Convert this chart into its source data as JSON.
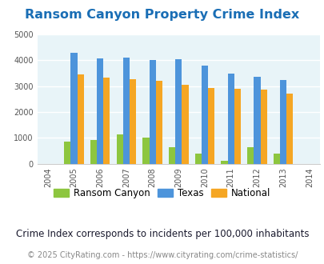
{
  "title": "Ransom Canyon Property Crime Index",
  "years": [
    2004,
    2005,
    2006,
    2007,
    2008,
    2009,
    2010,
    2011,
    2012,
    2013,
    2014
  ],
  "data_years": [
    2005,
    2006,
    2007,
    2008,
    2009,
    2010,
    2011,
    2012,
    2013
  ],
  "ransom_canyon": [
    850,
    930,
    1130,
    1000,
    630,
    380,
    120,
    640,
    380
  ],
  "texas": [
    4300,
    4080,
    4100,
    4000,
    4030,
    3800,
    3480,
    3360,
    3240
  ],
  "national": [
    3440,
    3340,
    3250,
    3200,
    3040,
    2940,
    2900,
    2860,
    2700
  ],
  "bar_width": 0.25,
  "colors": {
    "ransom_canyon": "#8dc63f",
    "texas": "#4d94db",
    "national": "#f5a623"
  },
  "ylim": [
    0,
    5000
  ],
  "yticks": [
    0,
    1000,
    2000,
    3000,
    4000,
    5000
  ],
  "bg_color": "#e8f4f8",
  "fig_bg": "#ffffff",
  "title_color": "#1a6eb5",
  "subtitle": "Crime Index corresponds to incidents per 100,000 inhabitants",
  "footer": "© 2025 CityRating.com - https://www.cityrating.com/crime-statistics/",
  "legend_labels": [
    "Ransom Canyon",
    "Texas",
    "National"
  ],
  "title_fontsize": 11.5,
  "subtitle_fontsize": 8.5,
  "footer_fontsize": 7,
  "tick_fontsize": 7,
  "legend_fontsize": 8.5
}
